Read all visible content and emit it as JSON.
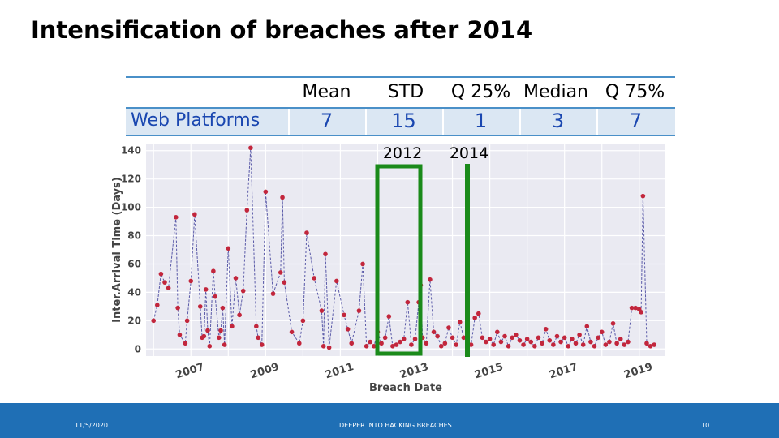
{
  "page": {
    "title": "Intensification of breaches after 2014"
  },
  "stats_table": {
    "row_label": "Web Platforms",
    "columns": [
      "Mean",
      "STD",
      "Q 25%",
      "Median",
      "Q 75%"
    ],
    "values": [
      "7",
      "15",
      "1",
      "3",
      "7"
    ]
  },
  "annotations": {
    "label_2012": "2012",
    "label_2014": "2014"
  },
  "footer": {
    "date": "11/5/2020",
    "center": "DEEPER INTO HACKING BREACHES",
    "page_number": "10"
  },
  "colors": {
    "marker": "#c2263c",
    "line": "#5a5aa8",
    "plot_bg": "#eaeaf2",
    "grid": "#ffffff",
    "highlight": "#1a8a1a",
    "table_accent": "#4a90c8",
    "table_fill": "#dbe7f3",
    "table_text": "#1a47b0",
    "footer_bar": "#1f6fb5"
  },
  "chart_data": {
    "type": "line",
    "title": "",
    "xlabel": "Breach Date",
    "ylabel": "Inter.Arrival Time (Days)",
    "xlim": [
      2005.8,
      2019.7
    ],
    "ylim": [
      -5,
      145
    ],
    "x_ticks": [
      2007,
      2009,
      2011,
      2013,
      2015,
      2017,
      2019
    ],
    "y_ticks": [
      0,
      20,
      40,
      60,
      80,
      100,
      120,
      140
    ],
    "grid": true,
    "series": [
      {
        "x": [
          2006.0,
          2006.1,
          2006.2,
          2006.3,
          2006.4,
          2006.6,
          2006.65,
          2006.7,
          2006.85,
          2006.9,
          2007.0,
          2007.1,
          2007.25,
          2007.3,
          2007.35,
          2007.4,
          2007.45,
          2007.5,
          2007.6,
          2007.65,
          2007.75,
          2007.8,
          2007.85,
          2007.9,
          2008.0,
          2008.1,
          2008.2,
          2008.3,
          2008.4,
          2008.5,
          2008.6,
          2008.75,
          2008.8,
          2008.9,
          2009.0,
          2009.2,
          2009.4,
          2009.45,
          2009.5,
          2009.7,
          2009.9,
          2010.0,
          2010.1,
          2010.3,
          2010.5,
          2010.55,
          2010.6,
          2010.7,
          2010.9,
          2011.1,
          2011.2,
          2011.3,
          2011.5,
          2011.6,
          2011.7,
          2011.8,
          2011.9,
          2012.0,
          2012.1,
          2012.2,
          2012.3,
          2012.4,
          2012.5,
          2012.6,
          2012.7,
          2012.8,
          2012.9,
          2013.0,
          2013.1,
          2013.15,
          2013.2,
          2013.3,
          2013.4,
          2013.5,
          2013.6,
          2013.7,
          2013.8,
          2013.9,
          2014.0,
          2014.1,
          2014.2,
          2014.3,
          2014.4,
          2014.5,
          2014.6,
          2014.7,
          2014.8,
          2014.9,
          2015.0,
          2015.1,
          2015.2,
          2015.3,
          2015.4,
          2015.5,
          2015.6,
          2015.7,
          2015.8,
          2015.9,
          2016.0,
          2016.1,
          2016.2,
          2016.3,
          2016.4,
          2016.5,
          2016.6,
          2016.7,
          2016.8,
          2016.9,
          2017.0,
          2017.1,
          2017.2,
          2017.3,
          2017.4,
          2017.5,
          2017.6,
          2017.7,
          2017.8,
          2017.9,
          2018.0,
          2018.1,
          2018.2,
          2018.3,
          2018.4,
          2018.5,
          2018.6,
          2018.7,
          2018.8,
          2018.9,
          2019.0,
          2019.05,
          2019.1,
          2019.2,
          2019.3,
          2019.4
        ],
        "y": [
          20,
          31,
          53,
          47,
          43,
          93,
          29,
          10,
          4,
          20,
          48,
          95,
          30,
          8,
          9,
          42,
          13,
          2,
          55,
          37,
          8,
          13,
          29,
          3,
          71,
          16,
          50,
          24,
          41,
          98,
          142,
          16,
          8,
          3,
          111,
          39,
          54,
          107,
          47,
          12,
          4,
          20,
          82,
          50,
          27,
          2,
          67,
          1,
          48,
          24,
          14,
          4,
          27,
          60,
          2,
          5,
          2,
          12,
          4,
          8,
          23,
          2,
          3,
          5,
          7,
          33,
          3,
          7,
          33,
          45,
          8,
          4,
          49,
          12,
          9,
          2,
          4,
          15,
          8,
          3,
          19,
          8,
          6,
          3,
          22,
          25,
          8,
          5,
          7,
          3,
          12,
          5,
          9,
          2,
          8,
          10,
          6,
          3,
          7,
          5,
          2,
          8,
          4,
          14,
          6,
          3,
          9,
          5,
          8,
          2,
          7,
          4,
          10,
          3,
          16,
          5,
          2,
          8,
          12,
          3,
          5,
          18,
          4,
          7,
          3,
          5,
          29,
          29,
          28,
          26,
          108,
          4,
          2,
          3
        ],
        "color": "#c2263c"
      }
    ]
  }
}
